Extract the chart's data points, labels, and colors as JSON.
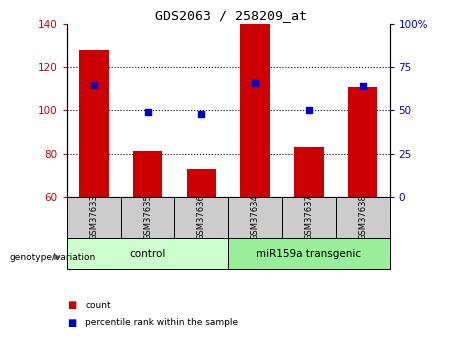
{
  "title": "GDS2063 / 258209_at",
  "samples": [
    "GSM37633",
    "GSM37635",
    "GSM37636",
    "GSM37634",
    "GSM37637",
    "GSM37638"
  ],
  "counts": [
    128,
    81,
    73,
    140,
    83,
    111
  ],
  "percentile_ranks": [
    65,
    49,
    48,
    66,
    50,
    64
  ],
  "ylim_left": [
    60,
    140
  ],
  "ylim_right": [
    0,
    100
  ],
  "yticks_left": [
    60,
    80,
    100,
    120,
    140
  ],
  "yticks_right": [
    0,
    25,
    50,
    75,
    100
  ],
  "yticklabels_right": [
    "0",
    "25",
    "50",
    "75",
    "100%"
  ],
  "bar_color": "#cc0000",
  "dot_color": "#0000cc",
  "bar_bottom": 60,
  "groups": [
    {
      "label": "control",
      "indices": [
        0,
        1,
        2
      ],
      "color": "#ccffcc"
    },
    {
      "label": "miR159a transgenic",
      "indices": [
        3,
        4,
        5
      ],
      "color": "#99ee99"
    }
  ],
  "group_label": "genotype/variation",
  "legend_count": "count",
  "legend_percentile": "percentile rank within the sample",
  "tick_label_color_left": "#cc0000",
  "tick_label_color_right": "#0000cc",
  "sample_box_color": "#cccccc",
  "fig_width": 4.61,
  "fig_height": 3.45,
  "dpi": 100
}
